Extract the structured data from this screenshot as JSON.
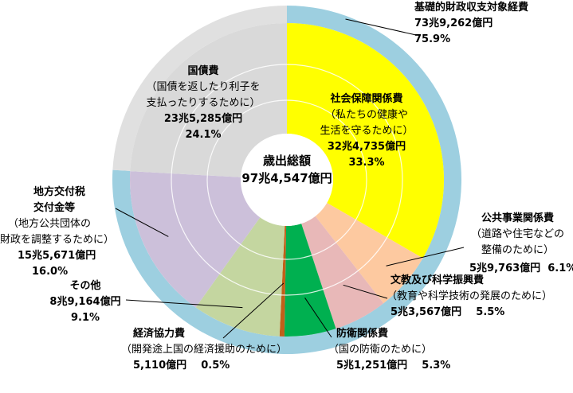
{
  "chart_data": {
    "type": "pie",
    "title": "",
    "center_label": {
      "line1": "歳出総額",
      "line2": "97兆4,547億円"
    },
    "outer_ring": {
      "name": "基礎的財政収支対象経費",
      "amount": "73兆9,262億円",
      "percent_label": "75.9%",
      "value": 75.9,
      "color": "#9dcfe0"
    },
    "remaining_ring_color": "#e0e0e0",
    "slices": [
      {
        "key": "social",
        "name": "社会保障関係費",
        "desc": [
          "（私たちの健康や",
          "生活を守るために）"
        ],
        "amount": "32兆4,735億円",
        "percent_label": "33.3%",
        "value": 33.3,
        "color": "#ffff00"
      },
      {
        "key": "public",
        "name": "公共事業関係費",
        "desc": [
          "（道路や住宅などの",
          "整備のために）"
        ],
        "amount": "5兆9,763億円",
        "percent_label": "6.1%",
        "value": 6.1,
        "color": "#fdc9a0"
      },
      {
        "key": "edu",
        "name": "文教及び科学振興費",
        "desc": [
          "（教育や科学技術の発展のために）"
        ],
        "amount": "5兆3,567億円",
        "percent_label": "5.5%",
        "value": 5.5,
        "color": "#e8b8b8"
      },
      {
        "key": "defense",
        "name": "防衛関係費",
        "desc": [
          "（国の防衛のために）"
        ],
        "amount": "5兆1,251億円",
        "percent_label": "5.3%",
        "value": 5.3,
        "color": "#00b050"
      },
      {
        "key": "econ",
        "name": "経済協力費",
        "desc": [
          "（開発途上国の経済援助のために）"
        ],
        "amount": "5,110億円",
        "percent_label": "0.5%",
        "value": 0.5,
        "color": "#c0601a"
      },
      {
        "key": "other",
        "name": "その他",
        "desc": [],
        "amount": "8兆9,164億円",
        "percent_label": "9.1%",
        "value": 9.1,
        "color": "#c4d6a0"
      },
      {
        "key": "local",
        "name": "地方交付税\n交付金等",
        "desc": [
          "（地方公共団体の",
          "財政を調整するために）"
        ],
        "amount": "15兆5,671億円",
        "percent_label": "16.0%",
        "value": 16.0,
        "color": "#ccc0da"
      },
      {
        "key": "debt",
        "name": "国債費",
        "desc": [
          "（国債を返したり利子を",
          "支払ったりするために）"
        ],
        "amount": "23兆5,285億円",
        "percent_label": "24.1%",
        "value": 24.1,
        "color": "#d9d9d9"
      }
    ]
  }
}
